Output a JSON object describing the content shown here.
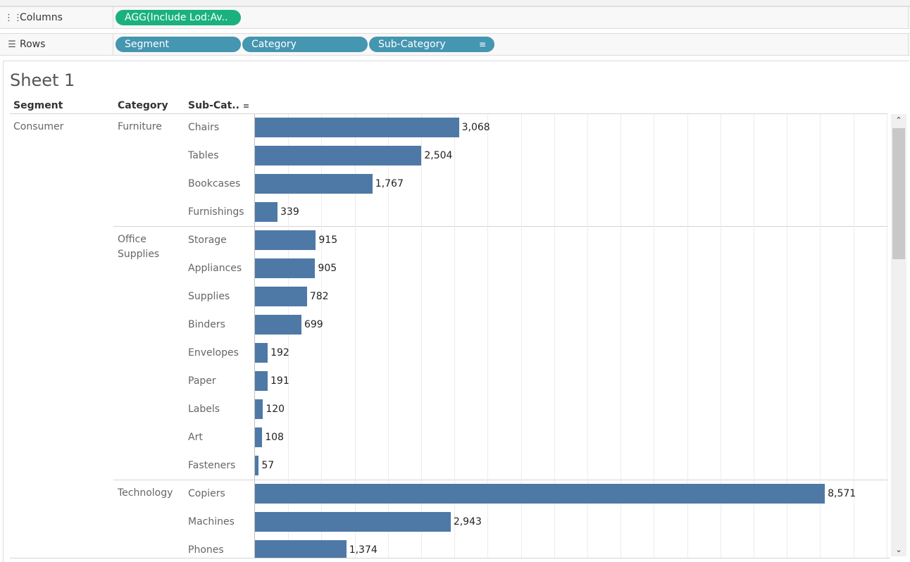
{
  "shelves": {
    "columns": {
      "label": "Columns",
      "icon": "columns-icon",
      "pills": [
        "AGG(Include Lod:Av.."
      ]
    },
    "rows": {
      "label": "Rows",
      "icon": "rows-icon",
      "pills": [
        "Segment",
        "Category",
        "Sub-Category"
      ]
    }
  },
  "sheet": {
    "title": "Sheet 1"
  },
  "headers": {
    "segment": "Segment",
    "category": "Category",
    "subcategory": "Sub-Cat.."
  },
  "colors": {
    "bar": "#4e79a7",
    "columns_pill": "#1ab17f",
    "rows_pill": "#4596b0"
  },
  "chart_data": {
    "type": "bar",
    "orientation": "horizontal",
    "segments": [
      "Consumer"
    ],
    "categories": [
      {
        "name": "Furniture",
        "label_lines": [
          "Furniture"
        ]
      },
      {
        "name": "Office Supplies",
        "label_lines": [
          "Office",
          "Supplies"
        ]
      },
      {
        "name": "Technology",
        "label_lines": [
          "Technology"
        ]
      }
    ],
    "rows": [
      {
        "segment": "Consumer",
        "category": "Furniture",
        "subcategory": "Chairs",
        "value": 3068,
        "label": "3,068"
      },
      {
        "segment": "Consumer",
        "category": "Furniture",
        "subcategory": "Tables",
        "value": 2504,
        "label": "2,504"
      },
      {
        "segment": "Consumer",
        "category": "Furniture",
        "subcategory": "Bookcases",
        "value": 1767,
        "label": "1,767"
      },
      {
        "segment": "Consumer",
        "category": "Furniture",
        "subcategory": "Furnishings",
        "value": 339,
        "label": "339"
      },
      {
        "segment": "Consumer",
        "category": "Office Supplies",
        "subcategory": "Storage",
        "value": 915,
        "label": "915"
      },
      {
        "segment": "Consumer",
        "category": "Office Supplies",
        "subcategory": "Appliances",
        "value": 905,
        "label": "905"
      },
      {
        "segment": "Consumer",
        "category": "Office Supplies",
        "subcategory": "Supplies",
        "value": 782,
        "label": "782"
      },
      {
        "segment": "Consumer",
        "category": "Office Supplies",
        "subcategory": "Binders",
        "value": 699,
        "label": "699"
      },
      {
        "segment": "Consumer",
        "category": "Office Supplies",
        "subcategory": "Envelopes",
        "value": 192,
        "label": "192"
      },
      {
        "segment": "Consumer",
        "category": "Office Supplies",
        "subcategory": "Paper",
        "value": 191,
        "label": "191"
      },
      {
        "segment": "Consumer",
        "category": "Office Supplies",
        "subcategory": "Labels",
        "value": 120,
        "label": "120"
      },
      {
        "segment": "Consumer",
        "category": "Office Supplies",
        "subcategory": "Art",
        "value": 108,
        "label": "108"
      },
      {
        "segment": "Consumer",
        "category": "Office Supplies",
        "subcategory": "Fasteners",
        "value": 57,
        "label": "57"
      },
      {
        "segment": "Consumer",
        "category": "Technology",
        "subcategory": "Copiers",
        "value": 8571,
        "label": "8,571"
      },
      {
        "segment": "Consumer",
        "category": "Technology",
        "subcategory": "Machines",
        "value": 2943,
        "label": "2,943"
      },
      {
        "segment": "Consumer",
        "category": "Technology",
        "subcategory": "Phones",
        "value": 1374,
        "label": "1,374"
      }
    ],
    "xlim": [
      0,
      9500
    ],
    "grid": true
  }
}
